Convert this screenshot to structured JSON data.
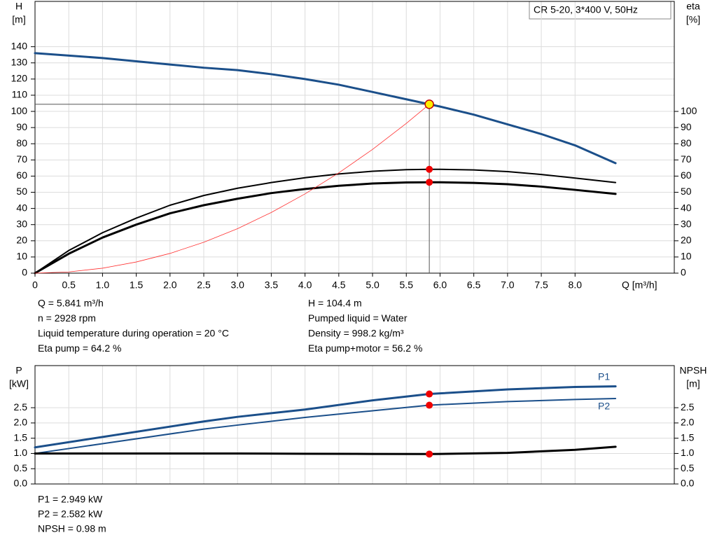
{
  "header": {
    "model": "CR 5-20, 3*400 V, 50Hz"
  },
  "chart_data": [
    {
      "type": "line",
      "ylabel": "H",
      "yunit": "[m]",
      "y2label": "eta",
      "y2unit": "[%]",
      "xlabel": "Q [m³/h]",
      "xlim": [
        0,
        9.47
      ],
      "xticks": [
        0,
        0.5,
        {
          "value": 1,
          "label": "1.0"
        },
        1.5,
        {
          "value": 2,
          "label": "2.0"
        },
        2.5,
        {
          "value": 3,
          "label": "3.0"
        },
        3.5,
        {
          "value": 4,
          "label": "4.0"
        },
        4.5,
        {
          "value": 5,
          "label": "5.0"
        },
        5.5,
        {
          "value": 6,
          "label": "6.0"
        },
        6.5,
        {
          "value": 7,
          "label": "7.0"
        },
        7.5,
        {
          "value": 8,
          "label": "8.0"
        }
      ],
      "ylim": [
        0,
        168
      ],
      "yticks": [
        0,
        10,
        20,
        30,
        40,
        50,
        60,
        70,
        80,
        90,
        100,
        110,
        120,
        130,
        140
      ],
      "y2lim": [
        0,
        168
      ],
      "y2ticks": [
        0,
        10,
        20,
        30,
        40,
        50,
        60,
        70,
        80,
        90,
        100
      ],
      "grid": true,
      "series": [
        {
          "color": "#1b4f8a",
          "width": 3,
          "x": [
            0,
            1,
            2,
            2.5,
            3,
            3.5,
            4,
            4.5,
            5,
            5.5,
            5.841,
            6,
            6.5,
            7,
            7.5,
            8,
            8.6
          ],
          "values": [
            136,
            133,
            129,
            127,
            125.5,
            123,
            120,
            116.5,
            112,
            107.5,
            104.4,
            103,
            98,
            92,
            86,
            79,
            68
          ]
        },
        {
          "color": "#000000",
          "width": 2,
          "axis": "y2",
          "x": [
            0,
            0.5,
            1,
            1.5,
            2,
            2.5,
            3,
            3.5,
            4,
            4.5,
            5,
            5.5,
            5.841,
            6,
            6.5,
            7,
            7.5,
            8,
            8.6
          ],
          "values": [
            0,
            14,
            25,
            34,
            42,
            48,
            52.5,
            56,
            59,
            61.3,
            63,
            64,
            64.2,
            64.2,
            63.8,
            62.8,
            61,
            58.8,
            56
          ]
        },
        {
          "color": "#000000",
          "width": 3,
          "axis": "y2",
          "x": [
            0,
            0.5,
            1,
            1.5,
            2,
            2.5,
            3,
            3.5,
            4,
            4.5,
            5,
            5.5,
            5.841,
            6,
            6.5,
            7,
            7.5,
            8,
            8.6
          ],
          "values": [
            0,
            12,
            22,
            30,
            37,
            42,
            46,
            49.5,
            52,
            54,
            55.4,
            56.1,
            56.2,
            56.2,
            55.8,
            55,
            53.5,
            51.5,
            49
          ]
        },
        {
          "color": "#ff3030",
          "width": 0.8,
          "x": [
            0,
            0.5,
            1,
            1.5,
            2,
            2.5,
            3,
            3.5,
            4,
            4.5,
            5,
            5.5,
            5.841
          ],
          "values": [
            0,
            0.77,
            3.06,
            6.9,
            12.2,
            19.1,
            27.5,
            37.5,
            49,
            62,
            76.5,
            92.6,
            104.4
          ]
        }
      ],
      "points": [
        {
          "x": 5.841,
          "y": 104.4,
          "color": "#ffee00",
          "guide": true
        },
        {
          "x": 5.841,
          "y": 64.2,
          "axis": "y2",
          "color": "#ee0000"
        },
        {
          "x": 5.841,
          "y": 56.2,
          "axis": "y2",
          "color": "#ee0000"
        }
      ],
      "info_left": [
        "Q = 5.841 m³/h",
        "n = 2928 rpm",
        "Liquid temperature during operation = 20 °C",
        "Eta pump = 64.2 %"
      ],
      "info_right": [
        "H = 104.4 m",
        "Pumped liquid = Water",
        "Density = 998.2 kg/m³",
        "Eta pump+motor = 56.2 %"
      ]
    },
    {
      "type": "line",
      "sharex": true,
      "ylabel": "P",
      "yunit": "[kW]",
      "y2label": "NPSH",
      "y2unit": "[m]",
      "xlim": [
        0,
        9.47
      ],
      "ylim": [
        0,
        3.88
      ],
      "yticks": [
        {
          "value": 0,
          "label": "0.0"
        },
        0.5,
        {
          "value": 1,
          "label": "1.0"
        },
        1.5,
        {
          "value": 2,
          "label": "2.0"
        },
        2.5
      ],
      "y2lim": [
        0,
        3.88
      ],
      "y2ticks": [
        {
          "value": 0,
          "label": "0.0"
        },
        0.5,
        {
          "value": 1,
          "label": "1.0"
        },
        1.5,
        {
          "value": 2,
          "label": "2.0"
        },
        2.5
      ],
      "grid": true,
      "series": [
        {
          "label": "P1",
          "label_position": "above",
          "color": "#1b4f8a",
          "width": 3,
          "x": [
            0,
            2.5,
            3,
            4,
            5,
            5.841,
            6,
            7,
            8,
            8.6
          ],
          "values": [
            1.2,
            2.05,
            2.2,
            2.44,
            2.74,
            2.949,
            2.97,
            3.1,
            3.18,
            3.2
          ]
        },
        {
          "label": "P2",
          "label_position": "below",
          "color": "#1b4f8a",
          "width": 2,
          "x": [
            0,
            2.5,
            3,
            4,
            5,
            5.841,
            6,
            7,
            8,
            8.6
          ],
          "values": [
            1.0,
            1.8,
            1.93,
            2.18,
            2.4,
            2.582,
            2.6,
            2.7,
            2.77,
            2.8
          ]
        },
        {
          "color": "#000000",
          "width": 3,
          "axis": "y2",
          "x": [
            0,
            2.5,
            3,
            4,
            5,
            5.841,
            6,
            7,
            8,
            8.6
          ],
          "values": [
            1.0,
            1.0,
            1.0,
            0.99,
            0.985,
            0.98,
            0.985,
            1.02,
            1.12,
            1.22
          ]
        }
      ],
      "points": [
        {
          "x": 5.841,
          "y": 2.949,
          "color": "#ee0000"
        },
        {
          "x": 5.841,
          "y": 2.582,
          "color": "#ee0000"
        },
        {
          "x": 5.841,
          "y": 0.98,
          "axis": "y2",
          "color": "#ee0000"
        }
      ],
      "info_left": [
        "P1 = 2.949 kW",
        "P2 = 2.582 kW",
        "NPSH = 0.98 m"
      ]
    }
  ]
}
